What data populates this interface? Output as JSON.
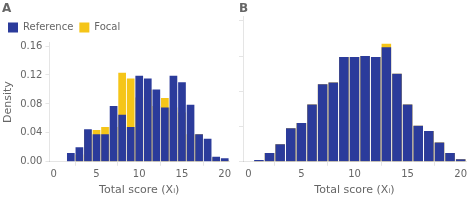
{
  "chart_data": [
    {
      "type": "bar",
      "title": "A",
      "x": [
        0,
        1,
        2,
        3,
        4,
        5,
        6,
        7,
        8,
        9,
        10,
        11,
        12,
        13,
        14,
        15,
        16,
        17,
        18,
        19,
        20
      ],
      "series": [
        {
          "name": "Reference",
          "color": "#2B3B9B",
          "values": [
            0.0,
            0.0,
            0.012,
            0.02,
            0.045,
            0.038,
            0.038,
            0.077,
            0.065,
            0.048,
            0.119,
            0.115,
            0.1,
            0.075,
            0.119,
            0.11,
            0.079,
            0.038,
            0.032,
            0.007,
            0.005
          ]
        },
        {
          "name": "Focal",
          "color": "#F5C518",
          "values": [
            0.0,
            0.0,
            0.0,
            0.01,
            0.044,
            0.044,
            0.048,
            0.048,
            0.123,
            0.115,
            0.089,
            0.1,
            0.077,
            0.088,
            0.075,
            0.068,
            0.038,
            0.038,
            0.0,
            0.006,
            0.002
          ]
        }
      ],
      "xlabel": "Total score (Xᵢ)",
      "ylabel": "Density",
      "xlim": [
        -0.5,
        20.5
      ],
      "xticks": [
        0,
        5,
        10,
        15,
        20
      ],
      "ylim": [
        0,
        0.165
      ],
      "yticks": [
        {
          "value": 0,
          "label": "0.00"
        },
        0.04,
        0.08,
        0.12,
        0.16
      ],
      "grid": false,
      "legend": "upper left"
    },
    {
      "type": "bar",
      "title": "B",
      "x": [
        0,
        1,
        2,
        3,
        4,
        5,
        6,
        7,
        8,
        9,
        10,
        11,
        12,
        13,
        14,
        15,
        16,
        17,
        18,
        19,
        20
      ],
      "series": [
        {
          "name": "Reference",
          "color": "#2B3B9B",
          "values": [
            0.0,
            0.002,
            0.01,
            0.02,
            0.038,
            0.044,
            0.065,
            0.088,
            0.09,
            0.119,
            0.119,
            0.12,
            0.119,
            0.13,
            0.1,
            0.065,
            0.041,
            0.035,
            0.022,
            0.01,
            0.003
          ]
        },
        {
          "name": "Focal",
          "color": "#F5C518",
          "values": [
            0.0,
            0.001,
            0.01,
            0.02,
            0.038,
            0.044,
            0.065,
            0.088,
            0.09,
            0.119,
            0.119,
            0.12,
            0.119,
            0.134,
            0.1,
            0.065,
            0.041,
            0.035,
            0.022,
            0.01,
            0.003
          ]
        }
      ],
      "xlabel": "Total score (Xᵢ)",
      "xlim": [
        -0.5,
        20.5
      ],
      "xticks": [
        0,
        5,
        10,
        15,
        20
      ],
      "ylim": [
        0,
        0.165
      ],
      "yticks": [
        {
          "value": 0,
          "label": "0.00"
        },
        0.04,
        0.08,
        0.12,
        0.16
      ],
      "grid": false,
      "tick_labels": "x"
    }
  ]
}
